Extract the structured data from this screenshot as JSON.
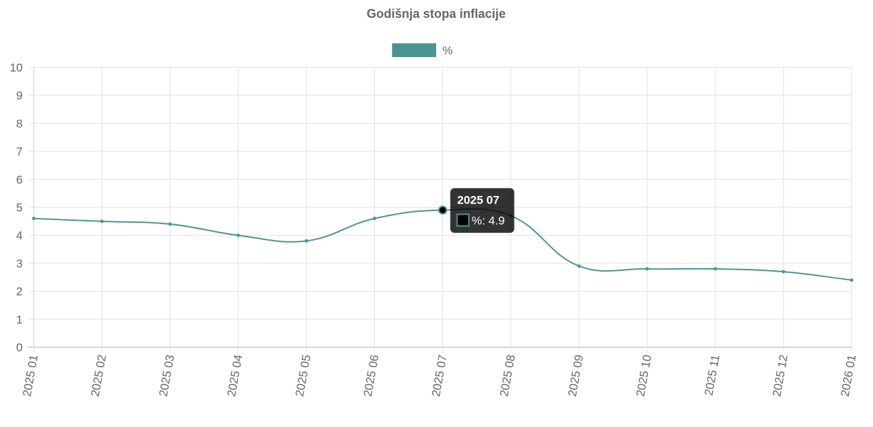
{
  "chart_data": {
    "type": "line",
    "title": "Godišnja stopa inflacije",
    "categories": [
      "2025 01",
      "2025 02",
      "2025 03",
      "2025 04",
      "2025 05",
      "2025 06",
      "2025 07",
      "2025 08",
      "2025 09",
      "2025 10",
      "2025 11",
      "2025 12",
      "2026 01"
    ],
    "series": [
      {
        "name": "%",
        "color": "#4a9594",
        "values": [
          4.6,
          4.5,
          4.4,
          4.0,
          3.8,
          4.6,
          4.9,
          4.7,
          2.9,
          2.8,
          2.8,
          2.7,
          2.4
        ]
      }
    ],
    "ylim": [
      0,
      10
    ],
    "yticks": [
      0,
      1,
      2,
      3,
      4,
      5,
      6,
      7,
      8,
      9,
      10
    ],
    "grid": true,
    "legend": "top",
    "tooltip": {
      "title": "2025 07",
      "text": "%: 4.9"
    }
  }
}
